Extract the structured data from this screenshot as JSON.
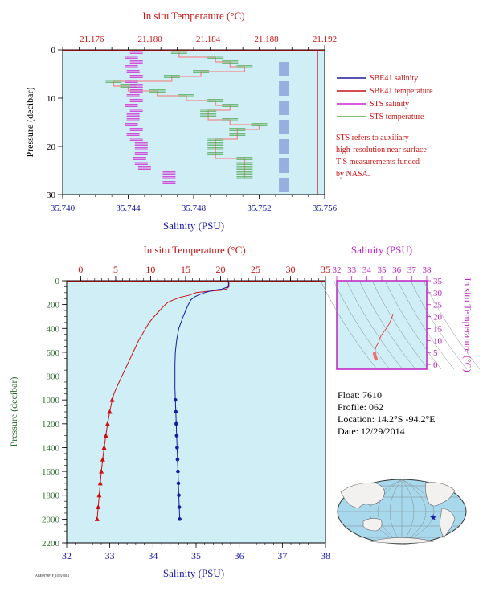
{
  "colors": {
    "panel_bg": "#cfeef6",
    "sbe_salinity": "#1a1aa6",
    "sbe_temperature": "#cc1111",
    "sts_salinity": "#d020d0",
    "sts_temperature": "#55aa55",
    "sts_temperature_pink": "#f08a8a",
    "pressure_axis": "#2e6b2e",
    "ts_axis": "#c020c0",
    "land": "#f3f1f0",
    "ocean": "#a8d8ec"
  },
  "chart_data": [
    {
      "id": "upper_profile",
      "type": "line",
      "top_axis": {
        "label": "In situ Temperature (°C)",
        "range": [
          21.174,
          21.192
        ],
        "ticks": [
          "21.176",
          "21.180",
          "21.184",
          "21.188",
          "21.192"
        ]
      },
      "bottom_axis": {
        "label": "Salinity (PSU)",
        "range": [
          35.74,
          35.756
        ],
        "ticks": [
          "35.740",
          "35.744",
          "35.748",
          "35.752",
          "35.756"
        ]
      },
      "left_axis": {
        "label": "Pressure (decibar)",
        "range": [
          0,
          30
        ],
        "inverted": true,
        "ticks": [
          "0",
          "10",
          "20",
          "30"
        ]
      },
      "legend": {
        "placement": "right",
        "items": [
          {
            "label": "SBE41 salinity",
            "color": "#1a1aa6"
          },
          {
            "label": "SBE41 temperature",
            "color": "#cc1111"
          },
          {
            "label": "STS salinity",
            "color": "#d020d0"
          },
          {
            "label": "STS temperature",
            "color": "#55aa55"
          }
        ]
      },
      "note": [
        "STS refers to auxiliary",
        "high-resolution near-surface",
        "T-S measurements funded",
        "by NASA."
      ],
      "series": [
        {
          "name": "STS salinity",
          "pressure": [
            0.5,
            1.5,
            2.5,
            3.5,
            4.5,
            5.5,
            6.5,
            7.5,
            8.5,
            9.5,
            10.5,
            11.5,
            12.5,
            13.5,
            14.5,
            15.5,
            16.5,
            17.5,
            18.5,
            19.5,
            20.5,
            21.5,
            22.5,
            23.5,
            24.5,
            25.5,
            26.5,
            27.5
          ],
          "salinity": [
            35.7445,
            35.7442,
            35.7445,
            35.7442,
            35.7443,
            35.7445,
            35.7442,
            35.7445,
            35.7445,
            35.7443,
            35.7445,
            35.7442,
            35.7445,
            35.7443,
            35.7443,
            35.7442,
            35.7445,
            35.7443,
            35.7445,
            35.7448,
            35.7448,
            35.7448,
            35.7447,
            35.7448,
            35.745,
            35.7465,
            35.7465,
            35.7465
          ]
        },
        {
          "name": "STS temperature",
          "pressure": [
            0.5,
            1.5,
            2.5,
            3.5,
            4.5,
            5.5,
            6.5,
            7.5,
            8.5,
            9.5,
            10.5,
            11.5,
            12.5,
            13.5,
            14.5,
            15.5,
            16.5,
            17.5,
            18.5,
            19.5,
            20.5,
            21.5,
            22.5,
            23.5,
            24.5,
            25.5,
            26.5
          ],
          "temperature": [
            21.182,
            21.1845,
            21.1855,
            21.1865,
            21.1835,
            21.1815,
            21.1775,
            21.1785,
            21.1805,
            21.1825,
            21.1845,
            21.1855,
            21.184,
            21.184,
            21.1855,
            21.1875,
            21.186,
            21.186,
            21.1845,
            21.1845,
            21.1845,
            21.1845,
            21.1865,
            21.1865,
            21.1865,
            21.1865,
            21.1865
          ]
        },
        {
          "name": "SBE41 salinity",
          "pressure": [
            4,
            8,
            12,
            16,
            20,
            24,
            28
          ],
          "salinity": [
            35.7535,
            35.7535,
            35.7535,
            35.7535,
            35.7535,
            35.7535,
            35.7535
          ]
        },
        {
          "name": "SBE41 temperature",
          "pressure": [
            0,
            30
          ],
          "temperature": [
            21.1915,
            21.1915
          ]
        }
      ]
    },
    {
      "id": "main_profile",
      "type": "line",
      "top_axis": {
        "label": "In situ Temperature (°C)",
        "range": [
          -2,
          35
        ],
        "ticks": [
          "0",
          "5",
          "10",
          "15",
          "20",
          "25",
          "30",
          "35"
        ]
      },
      "bottom_axis": {
        "label": "Salinity (PSU)",
        "range": [
          32,
          38
        ],
        "ticks": [
          "32",
          "33",
          "34",
          "35",
          "36",
          "37",
          "38"
        ]
      },
      "left_axis": {
        "label": "Pressure (decibar)",
        "range": [
          0,
          2200
        ],
        "inverted": true,
        "ticks": [
          "0",
          "200",
          "400",
          "600",
          "800",
          "1000",
          "1200",
          "1400",
          "1600",
          "1800",
          "2000",
          "2200"
        ]
      },
      "series": [
        {
          "name": "Temperature",
          "pressure": [
            0,
            50,
            70,
            80,
            90,
            100,
            120,
            140,
            160,
            180,
            200,
            250,
            300,
            350,
            400,
            450,
            500,
            550,
            600,
            650,
            700,
            750,
            800,
            850,
            900,
            950,
            1000,
            1100,
            1200,
            1300,
            1400,
            1500,
            1600,
            1700,
            1800,
            1900,
            2000
          ],
          "temperature": [
            21.2,
            21.2,
            20.8,
            20.0,
            18.0,
            16.5,
            15.6,
            14.2,
            13.3,
            12.5,
            12.1,
            11.3,
            10.5,
            9.8,
            9.3,
            8.8,
            8.3,
            7.9,
            7.5,
            7.1,
            6.7,
            6.3,
            5.9,
            5.5,
            5.1,
            4.75,
            4.5,
            4.15,
            3.85,
            3.6,
            3.35,
            3.15,
            2.95,
            2.8,
            2.65,
            2.5,
            2.35
          ]
        },
        {
          "name": "Salinity",
          "pressure": [
            0,
            50,
            70,
            80,
            100,
            120,
            140,
            160,
            180,
            200,
            250,
            300,
            400,
            500,
            600,
            700,
            800,
            900,
            1000,
            1100,
            1200,
            1300,
            1400,
            1500,
            1600,
            1700,
            1800,
            1900,
            2000
          ],
          "salinity": [
            35.75,
            35.75,
            35.6,
            35.4,
            35.2,
            35.05,
            34.95,
            34.88,
            34.85,
            34.82,
            34.76,
            34.7,
            34.6,
            34.55,
            34.52,
            34.51,
            34.51,
            34.51,
            34.52,
            34.53,
            34.54,
            34.55,
            34.56,
            34.57,
            34.58,
            34.59,
            34.6,
            34.61,
            34.62
          ]
        }
      ]
    },
    {
      "id": "ts_diagram",
      "type": "scatter",
      "top_axis": {
        "label": "Salinity (PSU)",
        "range": [
          32,
          38
        ],
        "ticks": [
          "32",
          "33",
          "34",
          "35",
          "36",
          "37",
          "38"
        ]
      },
      "right_axis": {
        "label": "In situ Temperature (°C)",
        "range": [
          -2,
          35
        ],
        "ticks": [
          "0",
          "5",
          "10",
          "15",
          "20",
          "25",
          "30",
          "35"
        ]
      },
      "salinity": [
        35.75,
        35.7,
        35.5,
        35.3,
        35.1,
        34.95,
        34.85,
        34.8,
        34.7,
        34.6,
        34.55,
        34.52,
        34.55,
        34.58,
        34.62
      ],
      "temperature": [
        21.2,
        20.0,
        17.0,
        15.0,
        13.3,
        12.0,
        10.5,
        9.3,
        8.3,
        7.1,
        5.9,
        4.5,
        3.6,
        2.95,
        2.35
      ]
    }
  ],
  "float_info": {
    "float": "Float: 7610",
    "profile": "Profile: 062",
    "location": "Location: 14.2°S -94.2°E",
    "date": "Date: 12/29/2014"
  },
  "footer_code": "AGE0978P1F_1023/2014"
}
